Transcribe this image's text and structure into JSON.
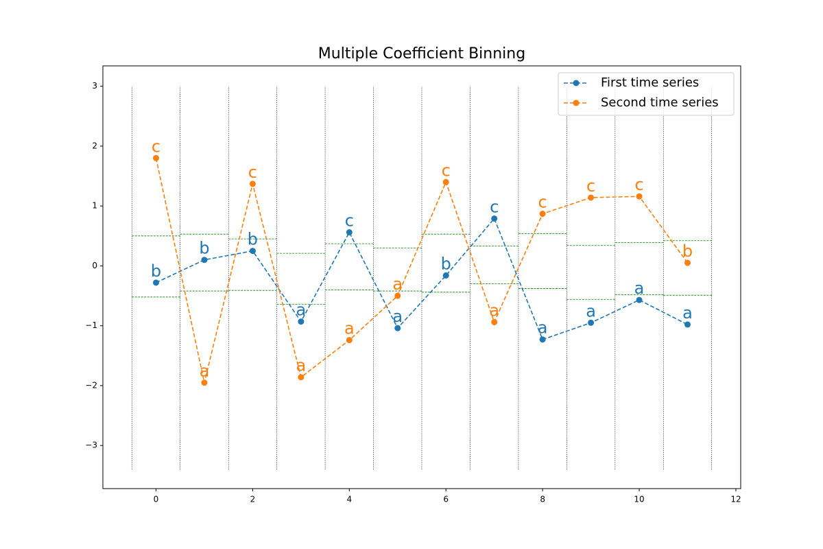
{
  "chart_data": {
    "type": "line",
    "title": "Multiple Coefficient Binning",
    "x": [
      0,
      1,
      2,
      3,
      4,
      5,
      6,
      7,
      8,
      9,
      10,
      11
    ],
    "series": [
      {
        "name": "First time series",
        "color": "#1f77b4",
        "values": [
          -0.28,
          0.1,
          0.25,
          -0.93,
          0.56,
          -1.04,
          -0.16,
          0.79,
          -1.23,
          -0.95,
          -0.57,
          -0.98
        ],
        "symbols": [
          "b",
          "b",
          "b",
          "a",
          "c",
          "a",
          "b",
          "c",
          "a",
          "a",
          "a",
          "a"
        ]
      },
      {
        "name": "Second time series",
        "color": "#ff7f0e",
        "values": [
          1.8,
          -1.95,
          1.37,
          -1.86,
          -1.24,
          -0.5,
          1.4,
          -0.94,
          0.87,
          1.14,
          1.16,
          0.05
        ],
        "symbols": [
          "c",
          "a",
          "c",
          "a",
          "a",
          "a",
          "c",
          "a",
          "c",
          "c",
          "c",
          "b"
        ]
      }
    ],
    "bin_edges": [
      [
        -0.52,
        0.5
      ],
      [
        -0.42,
        0.53
      ],
      [
        -0.41,
        0.45
      ],
      [
        -0.64,
        0.21
      ],
      [
        -0.4,
        0.37
      ],
      [
        -0.42,
        0.3
      ],
      [
        -0.44,
        0.53
      ],
      [
        -0.3,
        0.33
      ],
      [
        -0.38,
        0.54
      ],
      [
        -0.56,
        0.34
      ],
      [
        -0.48,
        0.39
      ],
      [
        -0.49,
        0.42
      ]
    ],
    "bin_edge_color": "#008000",
    "vlines": {
      "x": [
        -0.5,
        0.5,
        1.5,
        2.5,
        3.5,
        4.5,
        5.5,
        6.5,
        7.5,
        8.5,
        9.5,
        10.5,
        11.5
      ],
      "ymin": -3.4,
      "ymax": 3
    },
    "xlim": [
      -1.1,
      12.1
    ],
    "ylim": [
      -3.72,
      3.34
    ],
    "xticks": [
      0,
      2,
      4,
      6,
      8,
      10,
      12
    ],
    "yticks": [
      {
        "value": -3,
        "label": "−3"
      },
      {
        "value": -2,
        "label": "−2"
      },
      {
        "value": -1,
        "label": "−1"
      },
      0,
      1,
      2,
      3
    ],
    "legend": "upper right"
  }
}
